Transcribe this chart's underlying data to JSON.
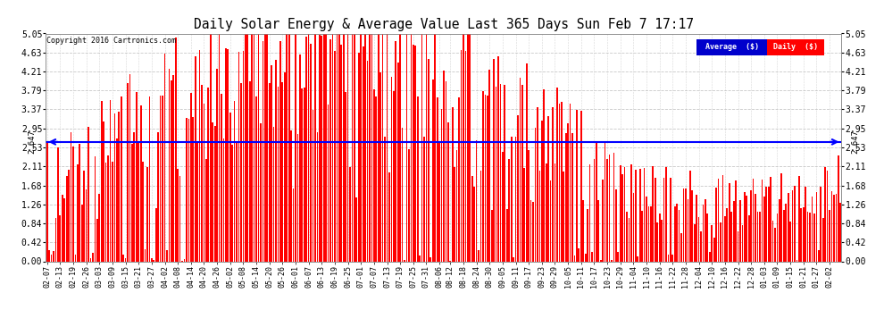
{
  "title": "Daily Solar Energy & Average Value Last 365 Days Sun Feb 7 17:17",
  "copyright": "Copyright 2016 Cartronics.com",
  "average_value": 2.647,
  "bar_color": "#FF0000",
  "average_line_color": "#0000FF",
  "background_color": "#FFFFFF",
  "plot_bg_color": "#FFFFFF",
  "grid_color": "#BBBBBB",
  "yticks": [
    0.0,
    0.42,
    0.84,
    1.26,
    1.68,
    2.11,
    2.53,
    2.95,
    3.37,
    3.79,
    4.21,
    4.63,
    5.05
  ],
  "ylim": [
    0.0,
    5.05
  ],
  "legend_avg_label": "Average  ($)",
  "legend_daily_label": "Daily  ($)",
  "avg_label_bg": "#0000CC",
  "daily_label_bg": "#FF0000",
  "figsize": [
    9.9,
    3.75
  ],
  "dpi": 100,
  "n_days": 365,
  "x_labels": [
    "02-07",
    "02-13",
    "02-19",
    "02-26",
    "03-03",
    "03-09",
    "03-15",
    "03-21",
    "03-27",
    "04-02",
    "04-08",
    "04-14",
    "04-20",
    "04-26",
    "05-02",
    "05-08",
    "05-14",
    "05-20",
    "05-26",
    "06-01",
    "06-07",
    "06-13",
    "06-19",
    "06-25",
    "07-01",
    "07-07",
    "07-13",
    "07-19",
    "07-25",
    "07-31",
    "08-06",
    "08-12",
    "08-18",
    "08-24",
    "08-30",
    "09-05",
    "09-11",
    "09-17",
    "09-23",
    "09-29",
    "10-05",
    "10-11",
    "10-17",
    "10-23",
    "10-29",
    "11-04",
    "11-10",
    "11-16",
    "11-22",
    "11-28",
    "12-04",
    "12-10",
    "12-16",
    "12-22",
    "12-28",
    "01-03",
    "01-09",
    "01-15",
    "01-21",
    "01-27",
    "02-02"
  ]
}
